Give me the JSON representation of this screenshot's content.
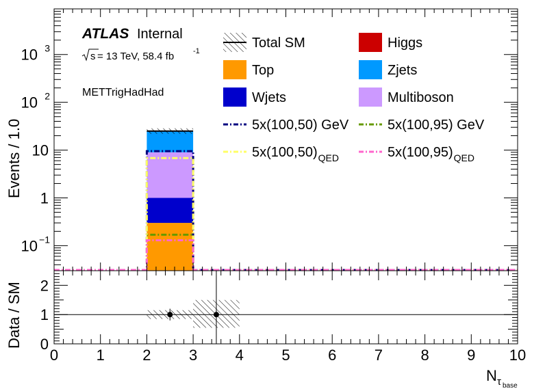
{
  "annotations": {
    "experiment": "ATLAS",
    "status": "Internal",
    "energy_prefix": "s",
    "energy": "= 13 TeV, 58.4 fb",
    "lumi_exp": "-1",
    "region": "METTrigHadHad"
  },
  "chart_data": [
    {
      "type": "bar",
      "stacked": true,
      "scale": "log",
      "ylabel": "Events / 1.0",
      "xlim": [
        0,
        10
      ],
      "ylim": [
        0.03,
        9000
      ],
      "yticks": [
        {
          "value": 0.1,
          "label": "10",
          "exp": "−1"
        },
        {
          "value": 1,
          "label": "1",
          "exp": ""
        },
        {
          "value": 10,
          "label": "10",
          "exp": ""
        },
        {
          "value": 100,
          "label": "10",
          "exp": "2"
        },
        {
          "value": 1000,
          "label": "10",
          "exp": "3"
        }
      ],
      "bin": [
        2,
        3
      ],
      "stack": [
        {
          "name": "Top",
          "value": 0.3,
          "color": "#ff9900"
        },
        {
          "name": "Wjets",
          "value": 0.7,
          "color": "#0000cc"
        },
        {
          "name": "Multiboson",
          "value": 8.0,
          "color": "#cc99ff"
        },
        {
          "name": "Zjets",
          "value": 16.0,
          "color": "#0099ff"
        },
        {
          "name": "Higgs",
          "value": 0.0,
          "color": "#cc0000"
        }
      ],
      "total_sm": 25.0,
      "signals": [
        {
          "name": "5x(100,50) GeV",
          "sub": "",
          "value": 9.5,
          "color": "#000080"
        },
        {
          "name": "5x(100,95) GeV",
          "sub": "",
          "value": 0.17,
          "color": "#669900"
        },
        {
          "name": "5x(100,50)",
          "sub": "QED",
          "value": 6.8,
          "color": "#ffff66"
        },
        {
          "name": "5x(100,95)",
          "sub": "QED",
          "value": 0.13,
          "color": "#ff66cc"
        }
      ],
      "legend": [
        {
          "name": "Total SM",
          "kind": "line",
          "color": "#000000",
          "sub": ""
        },
        {
          "name": "Higgs",
          "kind": "box",
          "color": "#cc0000",
          "sub": ""
        },
        {
          "name": "Top",
          "kind": "box",
          "color": "#ff9900",
          "sub": ""
        },
        {
          "name": "Zjets",
          "kind": "box",
          "color": "#0099ff",
          "sub": ""
        },
        {
          "name": "Wjets",
          "kind": "box",
          "color": "#0000cc",
          "sub": ""
        },
        {
          "name": "Multiboson",
          "kind": "box",
          "color": "#cc99ff",
          "sub": ""
        },
        {
          "name": "5x(100,50) GeV",
          "kind": "dash",
          "color": "#000080",
          "sub": ""
        },
        {
          "name": "5x(100,95) GeV",
          "kind": "dash",
          "color": "#669900",
          "sub": ""
        },
        {
          "name": "5x(100,50)",
          "kind": "dash",
          "color": "#ffff66",
          "sub": "QED"
        },
        {
          "name": "5x(100,95)",
          "kind": "dash",
          "color": "#ff66cc",
          "sub": "QED"
        }
      ],
      "legend_position": "top-right"
    },
    {
      "type": "scatter",
      "ylabel": "Data / SM",
      "xlabel": "N",
      "xlabel_sub": "τ",
      "xlabel_subsub": "base",
      "xlim": [
        0,
        10
      ],
      "ylim": [
        0,
        2.5
      ],
      "xticks": [
        "0",
        "1",
        "2",
        "3",
        "4",
        "5",
        "6",
        "7",
        "8",
        "9",
        "10"
      ],
      "yticks": [
        "0",
        "1",
        "2"
      ],
      "reference_line": 1,
      "points": [
        {
          "x": 2.5,
          "y": 1.0,
          "yerr_low": 0.2,
          "yerr_high": 0.2
        },
        {
          "x": 3.5,
          "y": 1.0,
          "yerr_low": 1.5,
          "yerr_high": 1.5
        }
      ],
      "uncertainty_bands": [
        {
          "x0": 2,
          "x1": 3,
          "low": 0.85,
          "high": 1.15
        },
        {
          "x0": 3,
          "x1": 4,
          "low": 0.55,
          "high": 1.5
        }
      ]
    }
  ]
}
